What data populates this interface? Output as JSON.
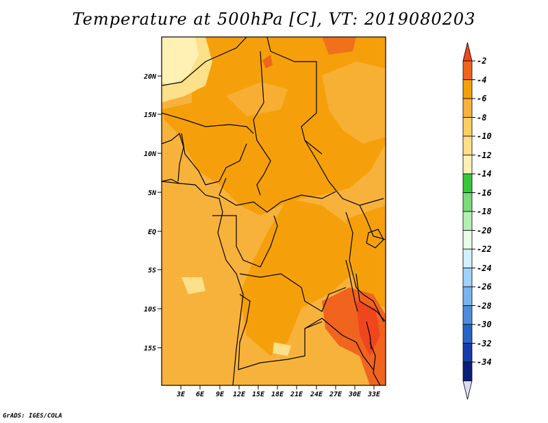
{
  "title": "Temperature at 500hPa [C], VT: 2019080203",
  "credit": "GrADS: IGES/COLA",
  "map": {
    "variable": "Temperature at 500hPa",
    "units": "C",
    "valid_time": "2019080203",
    "lat_labels": [
      "20N",
      "15N",
      "10N",
      "5N",
      "EQ",
      "5S",
      "10S",
      "15S"
    ],
    "lon_labels": [
      "3E",
      "6E",
      "9E",
      "12E",
      "15E",
      "18E",
      "21E",
      "24E",
      "27E",
      "30E",
      "33E"
    ],
    "colors": {
      "c_minus_2": "#f0641e",
      "c_minus_4": "#f5a00a",
      "c_minus_6": "#f7b23c",
      "c_minus_8": "#fde08a",
      "c_minus_10": "#fff0b4"
    }
  },
  "colorbar": {
    "labels": [
      "-2",
      "-4",
      "-6",
      "-8",
      "-10",
      "-12",
      "-14",
      "-16",
      "-18",
      "-20",
      "-22",
      "-24",
      "-26",
      "-28",
      "-30",
      "-32",
      "-34"
    ],
    "colors": [
      "#f0461e",
      "#f0641e",
      "#f5a00a",
      "#f7b23c",
      "#fcd060",
      "#fde08a",
      "#fff0b4",
      "#37c837",
      "#78dc78",
      "#b4f0b4",
      "#e6ffe6",
      "#d2f0ff",
      "#a0d2ff",
      "#78b4f0",
      "#508cdc",
      "#2864c8",
      "#143caa",
      "#0a1e78",
      "#dcdcf0"
    ]
  }
}
